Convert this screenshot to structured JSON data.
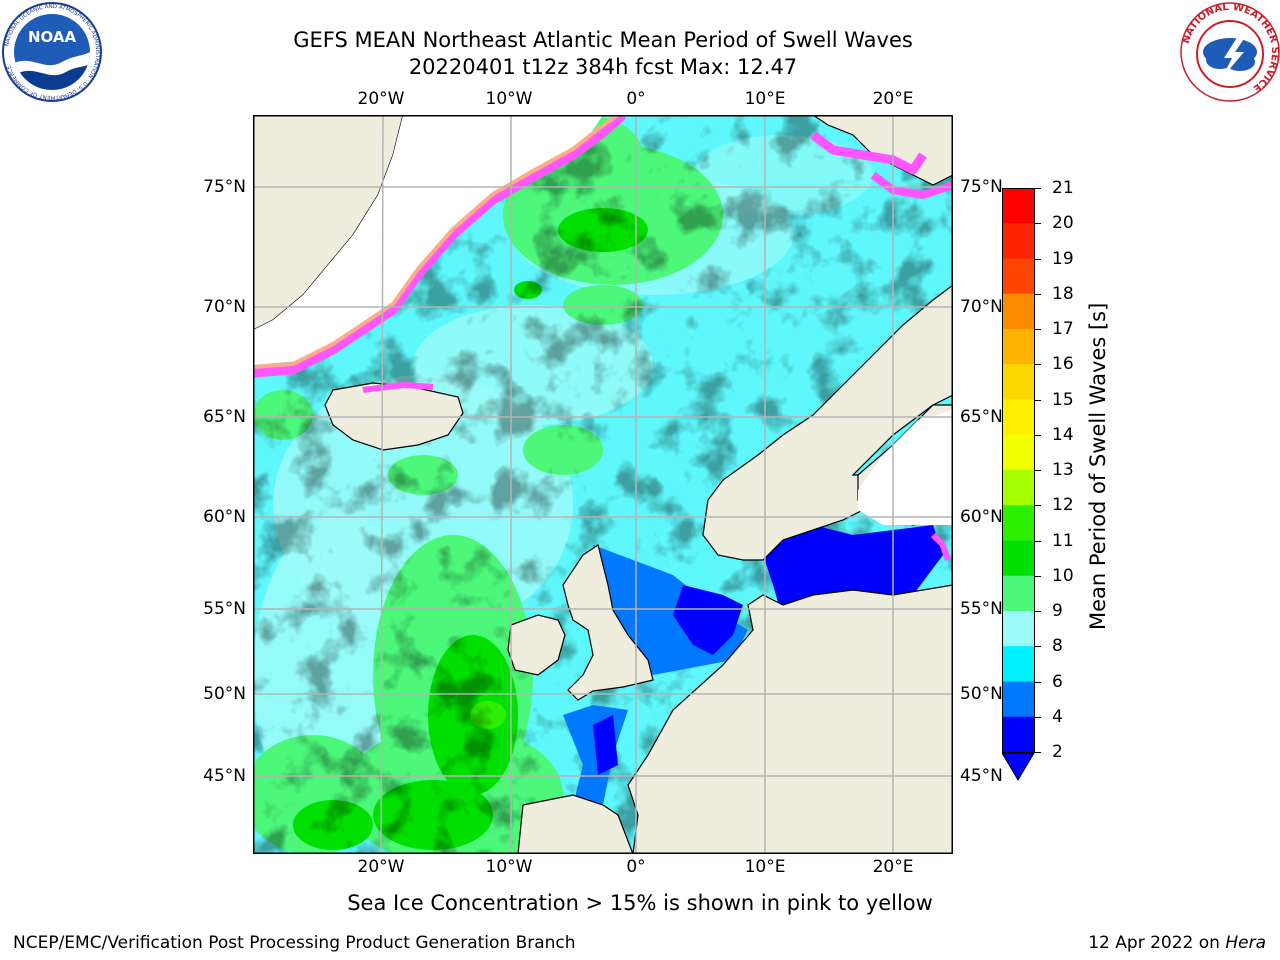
{
  "header": {
    "title_line1": "GEFS MEAN Northeast Atlantic Mean Period of Swell Waves",
    "title_line2": "20220401 t12z 384h fcst   Max: 12.47"
  },
  "logos": {
    "left": {
      "name": "noaa-logo",
      "text": "NOAA",
      "ring_text": "NATIONAL OCEANIC AND ATMOSPHERIC ADMINISTRATION · U.S. DEPARTMENT OF COMMERCE"
    },
    "right": {
      "name": "nws-logo",
      "ring_text": "NATIONAL WEATHER SERVICE"
    }
  },
  "map": {
    "longitude_ticks": [
      "20°W",
      "10°W",
      "0°",
      "10°E",
      "20°E"
    ],
    "latitude_ticks": [
      "75°N",
      "70°N",
      "65°N",
      "60°N",
      "55°N",
      "50°N",
      "45°N"
    ],
    "note": "Sea Ice Concentration > 15% is shown in pink to yellow",
    "colors": {
      "land": "#efedde",
      "ocean_light": "#5ef7fb",
      "grid": "#b4b4b4"
    }
  },
  "colorbar": {
    "label": "Mean Period of Swell Waves [s]",
    "ticks": [
      "21",
      "20",
      "19",
      "18",
      "17",
      "16",
      "15",
      "14",
      "13",
      "12",
      "11",
      "10",
      "9",
      "8",
      "6",
      "4",
      "2"
    ],
    "colors": [
      "#ff0000",
      "#ff2400",
      "#ff4500",
      "#ff6a00",
      "#ff8c00",
      "#ffb200",
      "#ffd700",
      "#fff000",
      "#f2ff00",
      "#d2ff00",
      "#a6ff00",
      "#2cf000",
      "#00e000",
      "#4cf77a",
      "#9bfbf8",
      "#57f7fb",
      "#00f2ff",
      "#0078ff",
      "#0000ff"
    ]
  },
  "footer": {
    "left": "NCEP/EMC/Verification Post Processing Product Generation Branch",
    "right_prefix": "12 Apr 2022 on ",
    "right_host": "Hera"
  }
}
